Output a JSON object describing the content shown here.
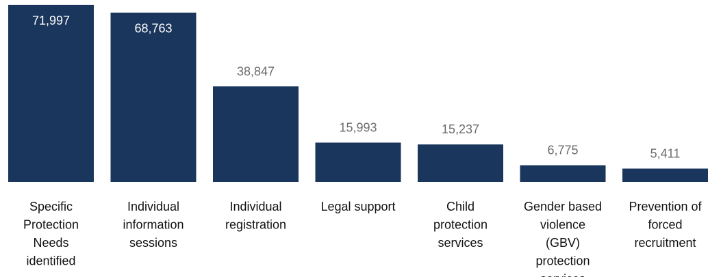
{
  "chart_data": {
    "type": "bar",
    "categories": [
      "Specific Protection Needs identified",
      "Individual information sessions",
      "Individual registration",
      "Legal support",
      "Child protection services",
      "Gender based violence (GBV) protection services",
      "Prevention of forced recruitment"
    ],
    "category_lines": [
      [
        "Specific",
        "Protection",
        "Needs",
        "identified"
      ],
      [
        "Individual",
        "information",
        "sessions"
      ],
      [
        "Individual",
        "registration"
      ],
      [
        "Legal support"
      ],
      [
        "Child",
        "protection",
        "services"
      ],
      [
        "Gender based",
        "violence",
        "(GBV)",
        "protection",
        "services"
      ],
      [
        "Prevention of",
        "forced",
        "recruitment"
      ]
    ],
    "values": [
      71997,
      68763,
      38847,
      15993,
      15237,
      6775,
      5411
    ],
    "value_labels": [
      "71,997",
      "68,763",
      "38,847",
      "15,993",
      "15,237",
      "6,775",
      "5,411"
    ],
    "value_label_inside": [
      true,
      true,
      false,
      false,
      false,
      false,
      false
    ],
    "title": "",
    "xlabel": "",
    "ylabel": "",
    "ylim": [
      0,
      72000
    ],
    "grid": false,
    "legend": "none",
    "colors": {
      "bar": "#1a365d",
      "label_inside": "#ffffff",
      "label_outside": "#6b6b6b",
      "category_text": "#111111"
    }
  }
}
